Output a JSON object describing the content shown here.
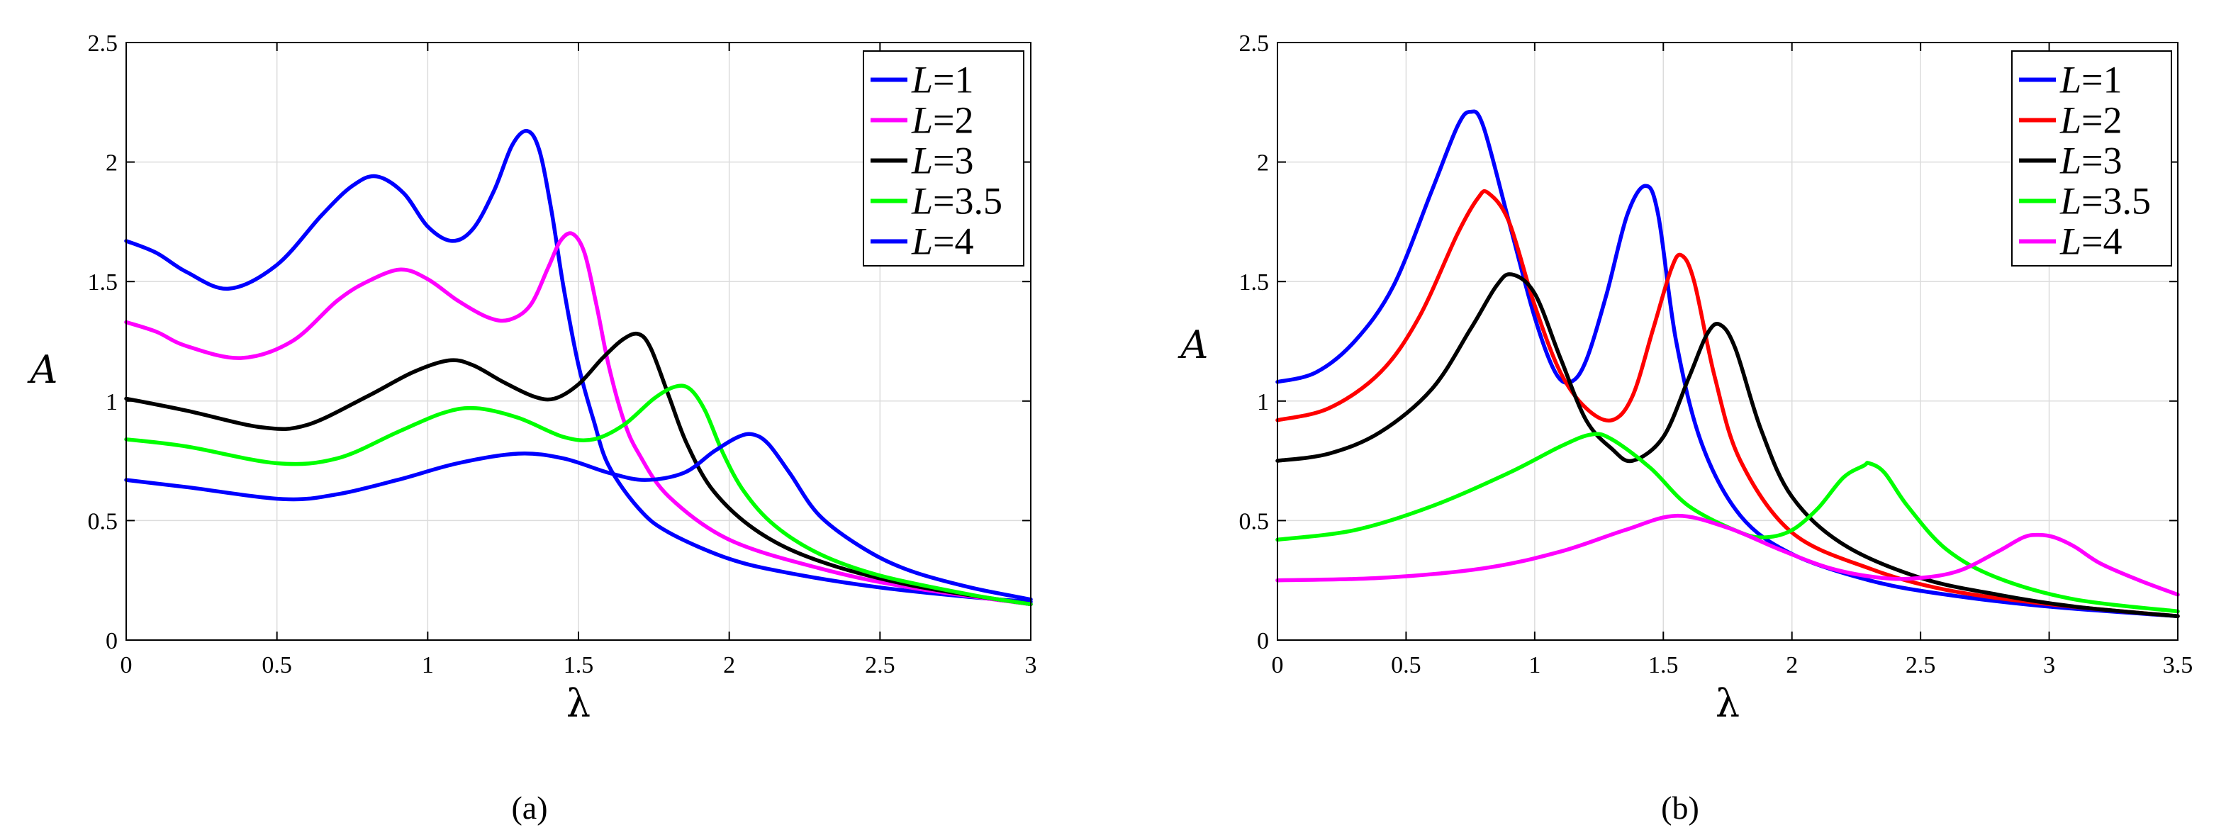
{
  "chart_data": [
    {
      "type": "line",
      "caption": "(a)",
      "xlabel": "λ",
      "ylabel": "A",
      "xlim": [
        0,
        3
      ],
      "ylim": [
        0,
        2.5
      ],
      "xticks": [
        "0",
        "0.5",
        "1",
        "1.5",
        "2",
        "2.5",
        "3"
      ],
      "yticks": [
        "0",
        "0.5",
        "1",
        "1.5",
        "2",
        "2.5"
      ],
      "grid": true,
      "legend_position": "top-right",
      "series": [
        {
          "name": "L=1",
          "name_var": "L",
          "name_val": "=1",
          "color": "#0000ff",
          "x": [
            0,
            0.1,
            0.2,
            0.34,
            0.5,
            0.65,
            0.75,
            0.83,
            0.92,
            1.0,
            1.08,
            1.15,
            1.22,
            1.28,
            1.33,
            1.37,
            1.41,
            1.45,
            1.5,
            1.55,
            1.6,
            1.7,
            1.8,
            2.0,
            2.2,
            2.5,
            2.8,
            3.0
          ],
          "y": [
            1.67,
            1.62,
            1.54,
            1.47,
            1.57,
            1.78,
            1.9,
            1.94,
            1.87,
            1.73,
            1.67,
            1.72,
            1.88,
            2.07,
            2.13,
            2.05,
            1.8,
            1.48,
            1.15,
            0.92,
            0.73,
            0.55,
            0.45,
            0.34,
            0.28,
            0.22,
            0.18,
            0.16
          ]
        },
        {
          "name": "L=2",
          "name_var": "L",
          "name_val": "=2",
          "color": "#ff00ff",
          "x": [
            0,
            0.1,
            0.2,
            0.38,
            0.55,
            0.7,
            0.8,
            0.91,
            1.0,
            1.1,
            1.2,
            1.27,
            1.34,
            1.4,
            1.44,
            1.48,
            1.52,
            1.56,
            1.6,
            1.65,
            1.7,
            1.8,
            2.0,
            2.3,
            2.6,
            3.0
          ],
          "y": [
            1.33,
            1.29,
            1.23,
            1.18,
            1.25,
            1.42,
            1.5,
            1.55,
            1.51,
            1.42,
            1.35,
            1.34,
            1.4,
            1.56,
            1.67,
            1.7,
            1.62,
            1.4,
            1.15,
            0.92,
            0.78,
            0.6,
            0.42,
            0.3,
            0.22,
            0.15
          ]
        },
        {
          "name": "L=3",
          "name_var": "L",
          "name_val": "=3",
          "color": "#000000",
          "x": [
            0,
            0.2,
            0.45,
            0.6,
            0.8,
            0.95,
            1.07,
            1.15,
            1.25,
            1.35,
            1.42,
            1.5,
            1.58,
            1.65,
            1.7,
            1.74,
            1.8,
            1.86,
            1.95,
            2.1,
            2.3,
            2.6,
            3.0
          ],
          "y": [
            1.01,
            0.96,
            0.89,
            0.9,
            1.02,
            1.12,
            1.17,
            1.15,
            1.08,
            1.02,
            1.01,
            1.07,
            1.18,
            1.26,
            1.28,
            1.22,
            1.02,
            0.82,
            0.62,
            0.45,
            0.33,
            0.23,
            0.15
          ]
        },
        {
          "name": "L=3.5",
          "name_var": "L",
          "name_val": "=3.5",
          "color": "#00ff00",
          "x": [
            0,
            0.2,
            0.5,
            0.7,
            0.9,
            1.05,
            1.16,
            1.3,
            1.45,
            1.55,
            1.65,
            1.75,
            1.82,
            1.87,
            1.92,
            1.98,
            2.05,
            2.15,
            2.3,
            2.5,
            2.8,
            3.0
          ],
          "y": [
            0.84,
            0.81,
            0.74,
            0.76,
            0.87,
            0.95,
            0.97,
            0.93,
            0.85,
            0.84,
            0.9,
            1.01,
            1.06,
            1.05,
            0.96,
            0.78,
            0.62,
            0.48,
            0.36,
            0.27,
            0.19,
            0.15
          ]
        },
        {
          "name": "L=4",
          "name_var": "L",
          "name_val": "=4",
          "color": "#0000ff",
          "x": [
            0,
            0.2,
            0.52,
            0.7,
            0.9,
            1.1,
            1.3,
            1.45,
            1.6,
            1.72,
            1.85,
            1.95,
            2.03,
            2.08,
            2.13,
            2.2,
            2.3,
            2.45,
            2.6,
            2.8,
            3.0
          ],
          "y": [
            0.67,
            0.64,
            0.59,
            0.61,
            0.67,
            0.74,
            0.78,
            0.76,
            0.7,
            0.67,
            0.7,
            0.79,
            0.85,
            0.86,
            0.82,
            0.7,
            0.52,
            0.38,
            0.29,
            0.22,
            0.17
          ]
        }
      ]
    },
    {
      "type": "line",
      "caption": "(b)",
      "xlabel": "λ",
      "ylabel": "A",
      "xlim": [
        0,
        3.5
      ],
      "ylim": [
        0,
        2.5
      ],
      "xticks": [
        "0",
        "0.5",
        "1",
        "1.5",
        "2",
        "2.5",
        "3",
        "3.5"
      ],
      "yticks": [
        "0",
        "0.5",
        "1",
        "1.5",
        "2",
        "2.5"
      ],
      "grid": true,
      "legend_position": "top-right",
      "series": [
        {
          "name": "L=1",
          "name_var": "L",
          "name_val": "=1",
          "color": "#0000ff",
          "x": [
            0,
            0.15,
            0.3,
            0.45,
            0.6,
            0.7,
            0.75,
            0.8,
            0.9,
            1.0,
            1.08,
            1.14,
            1.2,
            1.28,
            1.36,
            1.43,
            1.48,
            1.55,
            1.65,
            1.8,
            2.0,
            2.3,
            2.6,
            3.0,
            3.5
          ],
          "y": [
            1.08,
            1.12,
            1.25,
            1.48,
            1.88,
            2.15,
            2.21,
            2.15,
            1.75,
            1.35,
            1.12,
            1.08,
            1.17,
            1.45,
            1.78,
            1.9,
            1.78,
            1.25,
            0.82,
            0.52,
            0.36,
            0.25,
            0.19,
            0.14,
            0.1
          ]
        },
        {
          "name": "L=2",
          "name_var": "L",
          "name_val": "=2",
          "color": "#ff0000",
          "x": [
            0,
            0.2,
            0.4,
            0.55,
            0.7,
            0.78,
            0.82,
            0.9,
            1.0,
            1.1,
            1.2,
            1.3,
            1.38,
            1.46,
            1.53,
            1.57,
            1.62,
            1.7,
            1.8,
            2.0,
            2.3,
            2.6,
            3.0,
            3.5
          ],
          "y": [
            0.92,
            0.97,
            1.12,
            1.35,
            1.7,
            1.85,
            1.87,
            1.75,
            1.4,
            1.12,
            0.97,
            0.92,
            1.02,
            1.3,
            1.55,
            1.61,
            1.5,
            1.1,
            0.75,
            0.45,
            0.3,
            0.21,
            0.15,
            0.1
          ]
        },
        {
          "name": "L=3",
          "name_var": "L",
          "name_val": "=3",
          "color": "#000000",
          "x": [
            0,
            0.2,
            0.4,
            0.6,
            0.75,
            0.85,
            0.91,
            1.0,
            1.1,
            1.2,
            1.3,
            1.38,
            1.5,
            1.6,
            1.67,
            1.72,
            1.78,
            1.88,
            2.0,
            2.2,
            2.5,
            2.8,
            3.1,
            3.5
          ],
          "y": [
            0.75,
            0.78,
            0.87,
            1.05,
            1.3,
            1.48,
            1.53,
            1.45,
            1.18,
            0.92,
            0.8,
            0.75,
            0.85,
            1.1,
            1.28,
            1.32,
            1.22,
            0.88,
            0.6,
            0.4,
            0.26,
            0.19,
            0.14,
            0.1
          ]
        },
        {
          "name": "L=3.5",
          "name_var": "L",
          "name_val": "=3.5",
          "color": "#00ff00",
          "x": [
            0,
            0.3,
            0.6,
            0.9,
            1.1,
            1.22,
            1.3,
            1.45,
            1.6,
            1.8,
            1.9,
            2.0,
            2.1,
            2.2,
            2.28,
            2.3,
            2.36,
            2.45,
            2.6,
            2.8,
            3.1,
            3.5
          ],
          "y": [
            0.42,
            0.46,
            0.56,
            0.7,
            0.81,
            0.86,
            0.84,
            0.72,
            0.56,
            0.45,
            0.43,
            0.46,
            0.55,
            0.68,
            0.73,
            0.74,
            0.7,
            0.56,
            0.38,
            0.26,
            0.17,
            0.12
          ]
        },
        {
          "name": "L=4",
          "name_var": "L",
          "name_val": "=4",
          "color": "#ff00ff",
          "x": [
            0,
            0.4,
            0.8,
            1.1,
            1.35,
            1.55,
            1.75,
            1.95,
            2.15,
            2.35,
            2.5,
            2.65,
            2.8,
            2.9,
            2.96,
            3.02,
            3.1,
            3.2,
            3.35,
            3.5
          ],
          "y": [
            0.25,
            0.26,
            0.3,
            0.37,
            0.46,
            0.52,
            0.47,
            0.38,
            0.3,
            0.26,
            0.26,
            0.29,
            0.37,
            0.43,
            0.44,
            0.43,
            0.39,
            0.32,
            0.25,
            0.19
          ]
        }
      ]
    }
  ]
}
